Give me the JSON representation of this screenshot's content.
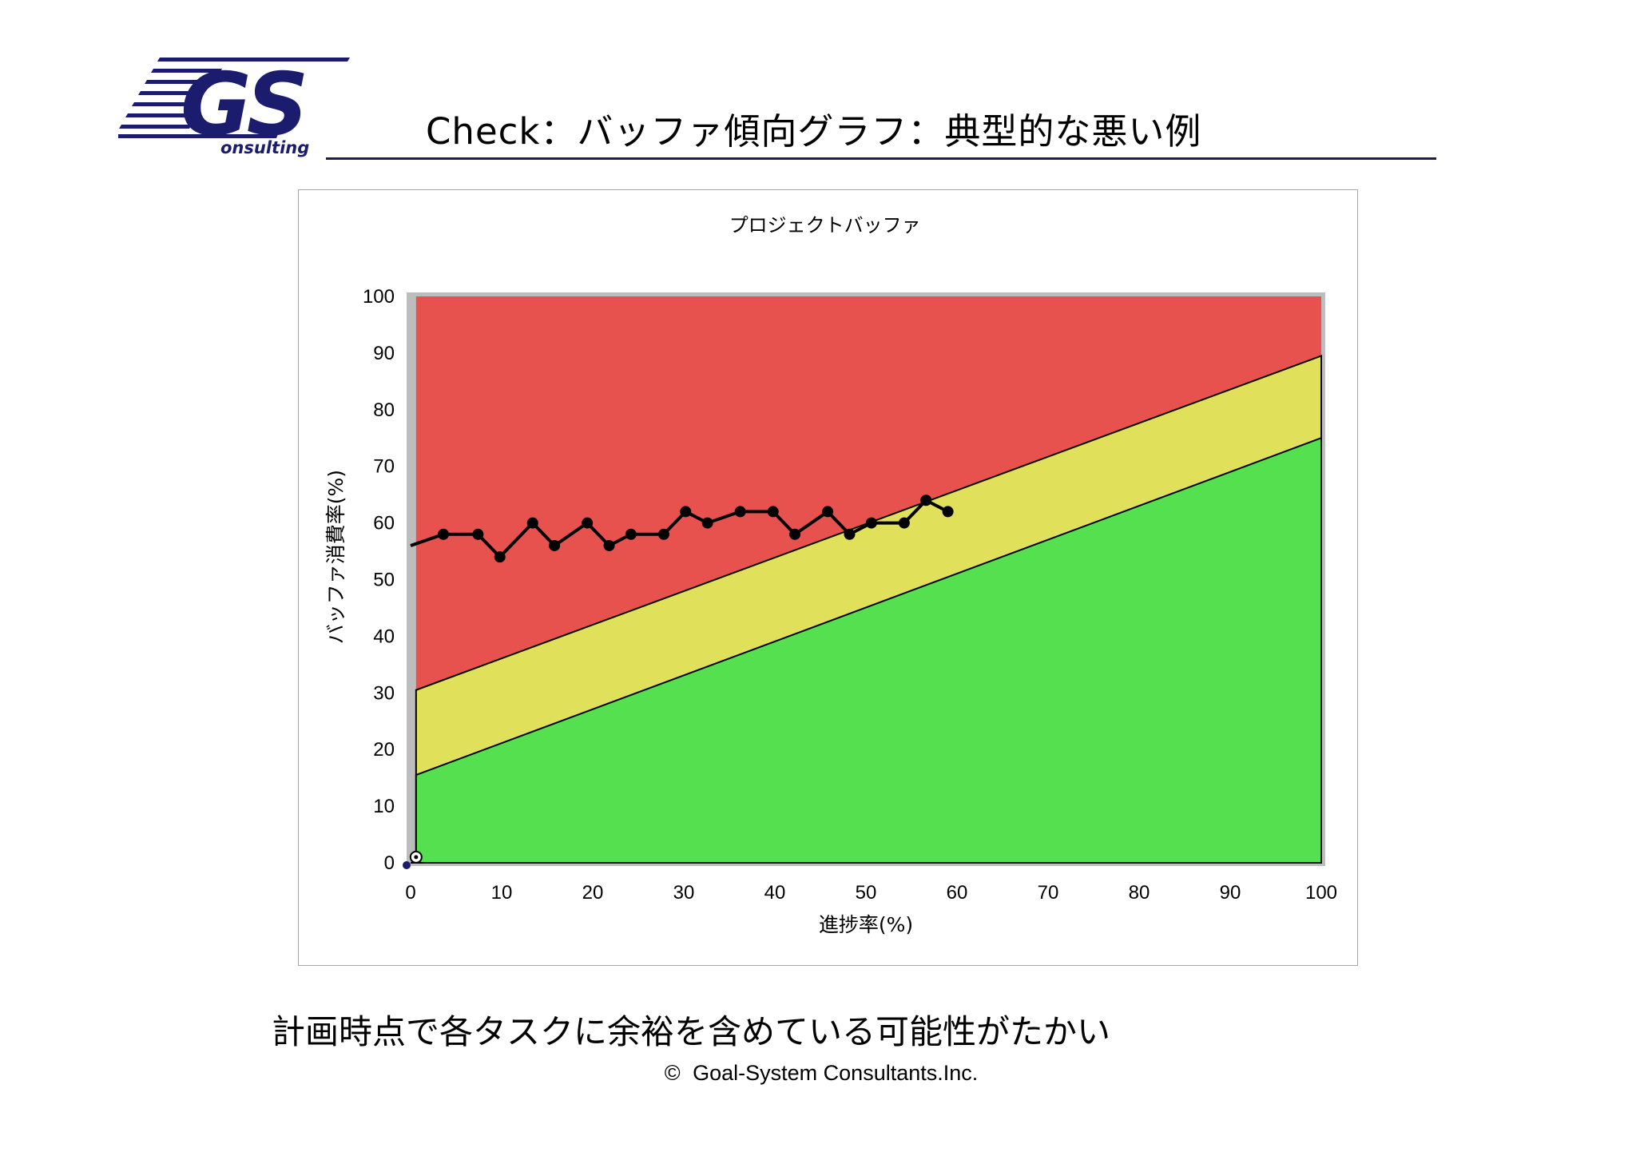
{
  "header": {
    "logo_text": "GS",
    "logo_subtext": "onsulting",
    "title": "Check：バッファ傾向グラフ：典型的な悪い例"
  },
  "footer": {
    "note": "計画時点で各タスクに余裕を含めている可能性がたかい",
    "copyright_symbol": "©",
    "copyright": "Goal-System Consultants.Inc."
  },
  "colors": {
    "red_zone": "#e8524e",
    "yellow_zone": "#e0e05a",
    "green_zone": "#55e050",
    "brand_navy": "#1c1c6e"
  },
  "chart_data": {
    "type": "line",
    "title": "プロジェクトバッファ",
    "xlabel": "進捗率(%)",
    "ylabel": "バッファ消費率(%)",
    "xlim": [
      0,
      100
    ],
    "ylim": [
      0,
      100
    ],
    "x_ticks": [
      "0",
      "10",
      "20",
      "30",
      "40",
      "50",
      "60",
      "70",
      "80",
      "90",
      "100"
    ],
    "y_ticks": [
      "0",
      "10",
      "20",
      "30",
      "40",
      "50",
      "60",
      "70",
      "80",
      "90",
      "100"
    ],
    "grid": false,
    "legend": "none",
    "zones": [
      {
        "name": "red",
        "from": 100,
        "to": "upper_line"
      },
      {
        "name": "yellow",
        "lower_line": [
          [
            0.6,
            15.5
          ],
          [
            100,
            75
          ]
        ],
        "upper_line": [
          [
            0.6,
            30.5
          ],
          [
            100,
            89.5
          ]
        ]
      },
      {
        "name": "green",
        "from": 0,
        "to": "lower_line"
      }
    ],
    "series": [
      {
        "values": [
          [
            0,
            56
          ],
          [
            3.6,
            58
          ],
          [
            7.4,
            58
          ],
          [
            9.8,
            54
          ],
          [
            13.4,
            60
          ],
          [
            15.8,
            56
          ],
          [
            19.4,
            60
          ],
          [
            21.8,
            56
          ],
          [
            24.2,
            58
          ],
          [
            27.8,
            58
          ],
          [
            30.2,
            62
          ],
          [
            32.6,
            60
          ],
          [
            36.2,
            62
          ],
          [
            39.8,
            62
          ],
          [
            42.2,
            58
          ],
          [
            45.8,
            62
          ],
          [
            48.2,
            58
          ],
          [
            50.6,
            60
          ],
          [
            54.2,
            60
          ],
          [
            56.6,
            64
          ],
          [
            59,
            62
          ]
        ]
      }
    ]
  }
}
